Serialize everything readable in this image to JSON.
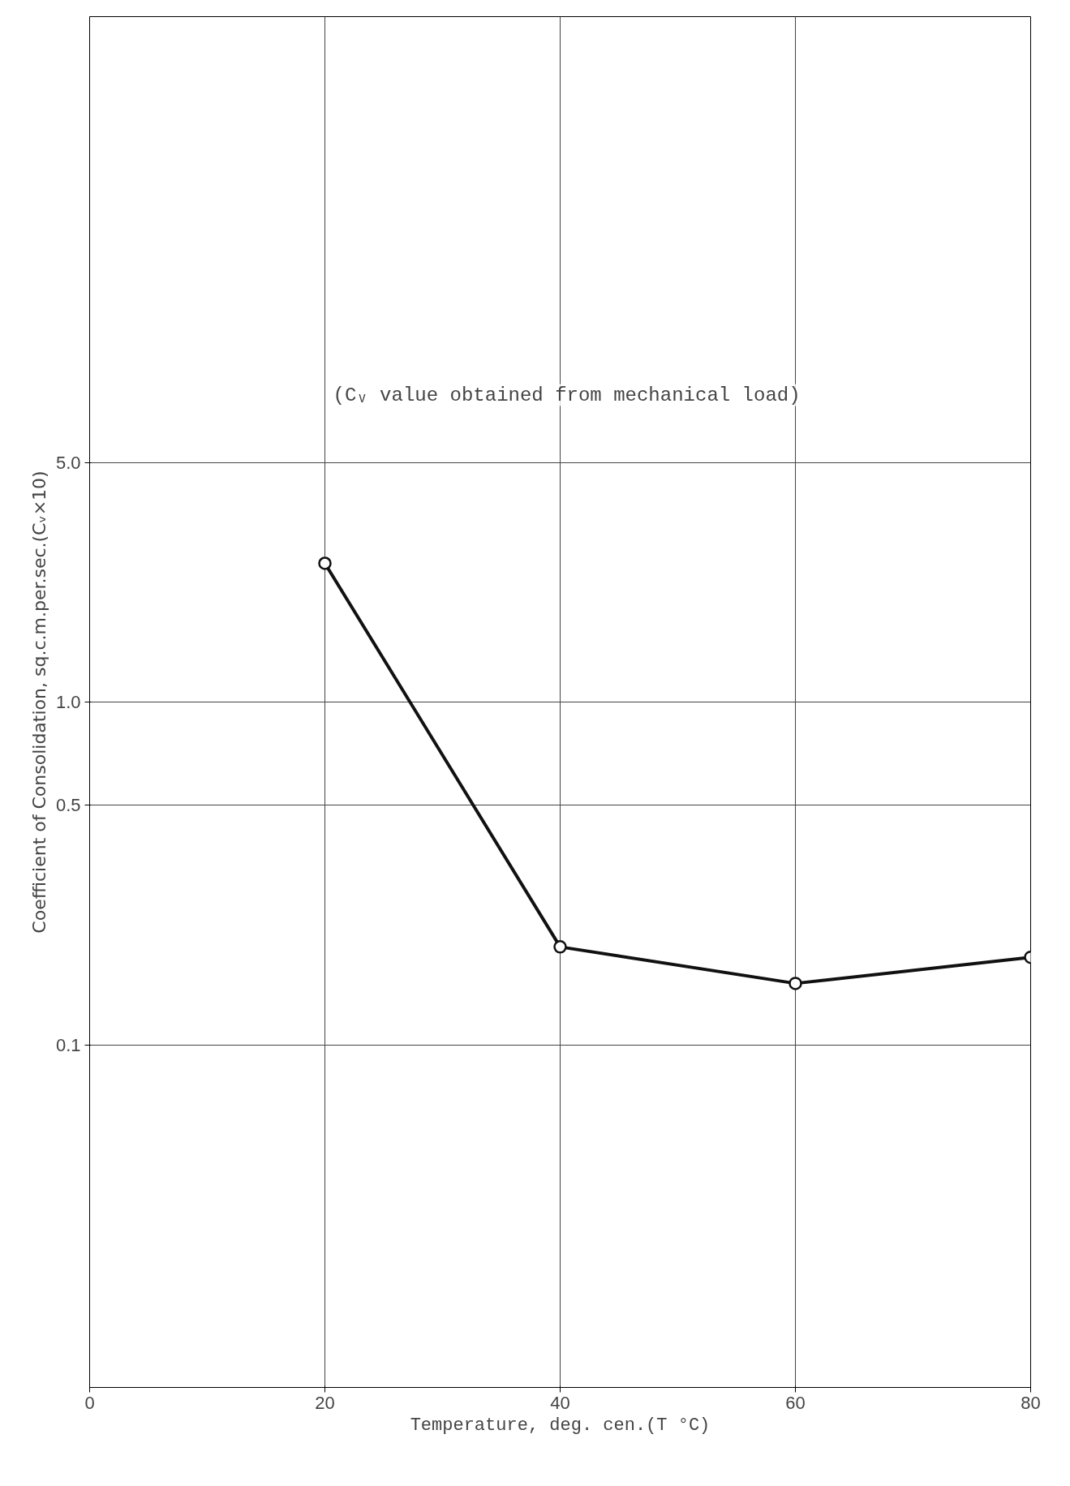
{
  "chart_data": {
    "type": "line",
    "xlabel": "Temperature, deg. cen.(T °C)",
    "ylabel": "Coefficient of Consolidation, sq.c.m.per.sec.(Cᵥ×10)",
    "x": [
      20,
      40,
      60,
      80
    ],
    "series": [
      {
        "color": "#111111",
        "values": [
          2.54,
          0.193,
          0.151,
          0.18
        ]
      }
    ],
    "xlim": [
      0,
      80
    ],
    "xticks": [
      0,
      20,
      40,
      60,
      80
    ],
    "ylim": [
      0.01,
      100
    ],
    "yticks": [
      0.1,
      0.5,
      {
        "value": 1,
        "label": "1.0"
      },
      {
        "value": 5,
        "label": "5.0"
      }
    ],
    "log": "y",
    "grid": true,
    "marker": "circle",
    "line_style": "solid",
    "annotations": [
      "(Cᵥ value obtained from mechanical load)"
    ]
  }
}
